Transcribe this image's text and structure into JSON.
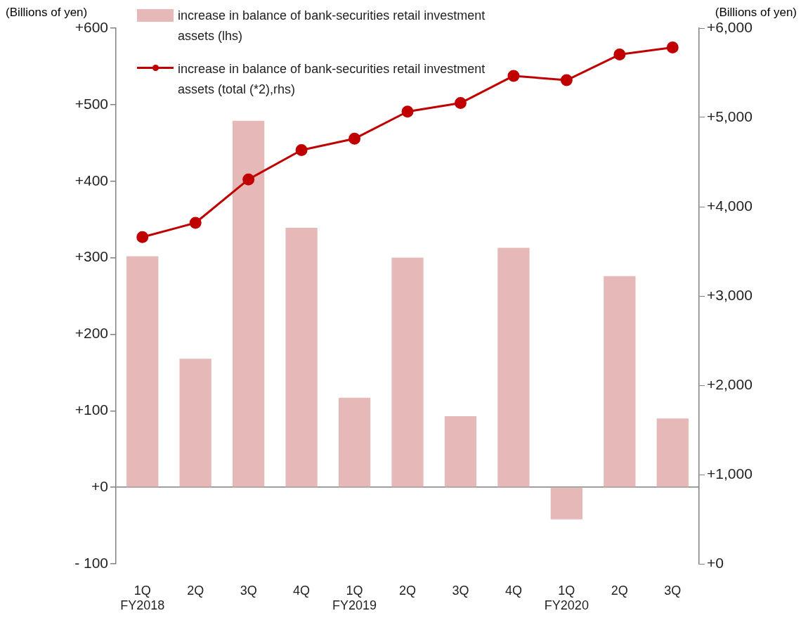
{
  "chart_data": {
    "type": "bar",
    "ylabel": "(Billions of yen)",
    "y2label": "(Billions of yen)",
    "categories": [
      "1Q\nFY2018",
      "2Q",
      "3Q",
      "4Q",
      "1Q\nFY2019",
      "2Q",
      "3Q",
      "4Q",
      "1Q\nFY2020",
      "2Q",
      "3Q"
    ],
    "series": [
      {
        "name": "increase in balance of bank-securities retail investment assets (lhs)",
        "color": "#e6b8b7",
        "values": [
          302,
          168,
          479,
          339,
          117,
          300,
          93,
          313,
          -42,
          276,
          90
        ]
      },
      {
        "name": "increase in balance of bank-securities retail investment assets (total (*2),rhs)",
        "type": "line",
        "axis": "y2",
        "color": "#c00000",
        "values": [
          3659,
          3819,
          4306,
          4634,
          4762,
          5065,
          5161,
          5465,
          5417,
          5704,
          5784
        ]
      }
    ],
    "ylim": [
      -100,
      600
    ],
    "yticks": [
      {
        "value": -100,
        "label": "- 100"
      },
      {
        "value": 0,
        "label": "+0"
      },
      {
        "value": 100,
        "label": "+100"
      },
      {
        "value": 200,
        "label": "+200"
      },
      {
        "value": 300,
        "label": "+300"
      },
      {
        "value": 400,
        "label": "+400"
      },
      {
        "value": 500,
        "label": "+500"
      },
      {
        "value": 600,
        "label": "+600"
      }
    ],
    "y2lim": [
      0,
      6000
    ],
    "y2ticks": [
      {
        "value": 0,
        "label": "+0"
      },
      {
        "value": 1000,
        "label": "+1,000"
      },
      {
        "value": 2000,
        "label": "+2,000"
      },
      {
        "value": 3000,
        "label": "+3,000"
      },
      {
        "value": 4000,
        "label": "+4,000"
      },
      {
        "value": 5000,
        "label": "+5,000"
      },
      {
        "value": 6000,
        "label": "+6,000"
      }
    ],
    "marker": "circle",
    "legend": "top left"
  }
}
